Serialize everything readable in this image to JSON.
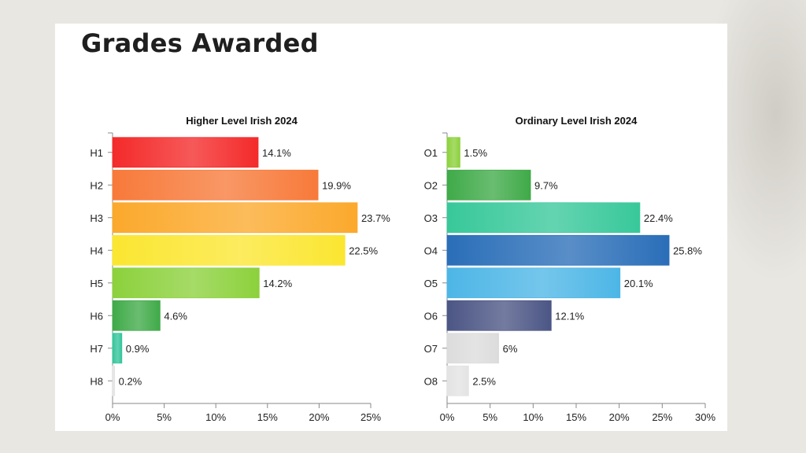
{
  "page": {
    "title": "Grades Awarded"
  },
  "chart_data": [
    {
      "type": "bar",
      "orientation": "horizontal",
      "title": "Higher Level Irish 2024",
      "categories": [
        "H1",
        "H2",
        "H3",
        "H4",
        "H5",
        "H6",
        "H7",
        "H8"
      ],
      "values": [
        14.1,
        19.9,
        23.7,
        22.5,
        14.2,
        4.6,
        0.9,
        0.2
      ],
      "value_labels": [
        "14.1%",
        "19.9%",
        "23.7%",
        "22.5%",
        "14.2%",
        "4.6%",
        "0.9%",
        "0.2%"
      ],
      "colors": [
        "#f42a2a",
        "#f77a3a",
        "#fba92c",
        "#fbe631",
        "#8cd13c",
        "#3faa48",
        "#35c59b",
        "#e3e3e3"
      ],
      "xlim": [
        0,
        25
      ],
      "xticks": [
        0,
        5,
        10,
        15,
        20,
        25
      ],
      "xtick_labels": [
        "0%",
        "5%",
        "10%",
        "15%",
        "20%",
        "25%"
      ],
      "xlabel": "",
      "ylabel": ""
    },
    {
      "type": "bar",
      "orientation": "horizontal",
      "title": "Ordinary Level Irish 2024",
      "categories": [
        "O1",
        "O2",
        "O3",
        "O4",
        "O5",
        "O6",
        "O7",
        "O8"
      ],
      "values": [
        1.5,
        9.7,
        22.4,
        25.8,
        20.1,
        12.1,
        6,
        2.5
      ],
      "value_labels": [
        "1.5%",
        "9.7%",
        "22.4%",
        "25.8%",
        "20.1%",
        "12.1%",
        "6%",
        "2.5%"
      ],
      "colors": [
        "#8cd13c",
        "#3faa48",
        "#38c89a",
        "#2a6eb8",
        "#4db6e6",
        "#4c5685",
        "#dcdcdc",
        "#e3e3e3"
      ],
      "xlim": [
        0,
        30
      ],
      "xticks": [
        0,
        5,
        10,
        15,
        20,
        25,
        30
      ],
      "xtick_labels": [
        "0%",
        "5%",
        "10%",
        "15%",
        "20%",
        "25%",
        "30%"
      ],
      "xlabel": "",
      "ylabel": ""
    }
  ]
}
